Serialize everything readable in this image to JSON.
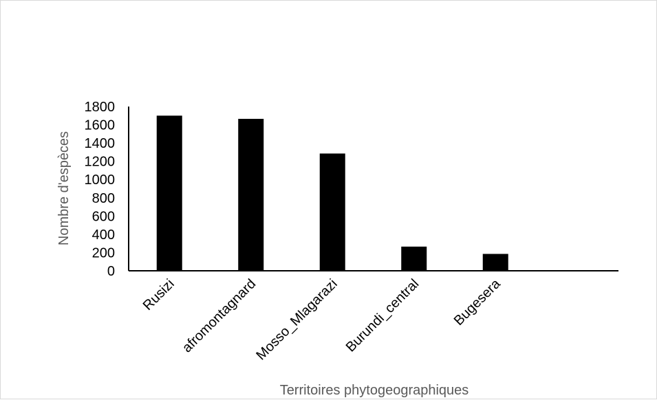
{
  "chart_data": {
    "type": "bar",
    "title": "",
    "xlabel": "Territoires phytogeographiques",
    "ylabel": "Nombre d'espèces",
    "categories": [
      "Rusizi",
      "afromontagnard",
      "Mosso_Mlagarazi",
      "Burundi_central",
      "Bugesera"
    ],
    "values": [
      1700,
      1665,
      1285,
      265,
      185
    ],
    "ylim": [
      0,
      1800
    ],
    "yticks": [
      "0",
      "200",
      "400",
      "600",
      "800",
      "1000",
      "1200",
      "1400",
      "1600",
      "1800"
    ],
    "grid": false,
    "legend": "none",
    "bar_color": "#000000",
    "axis_color": "#000000"
  }
}
